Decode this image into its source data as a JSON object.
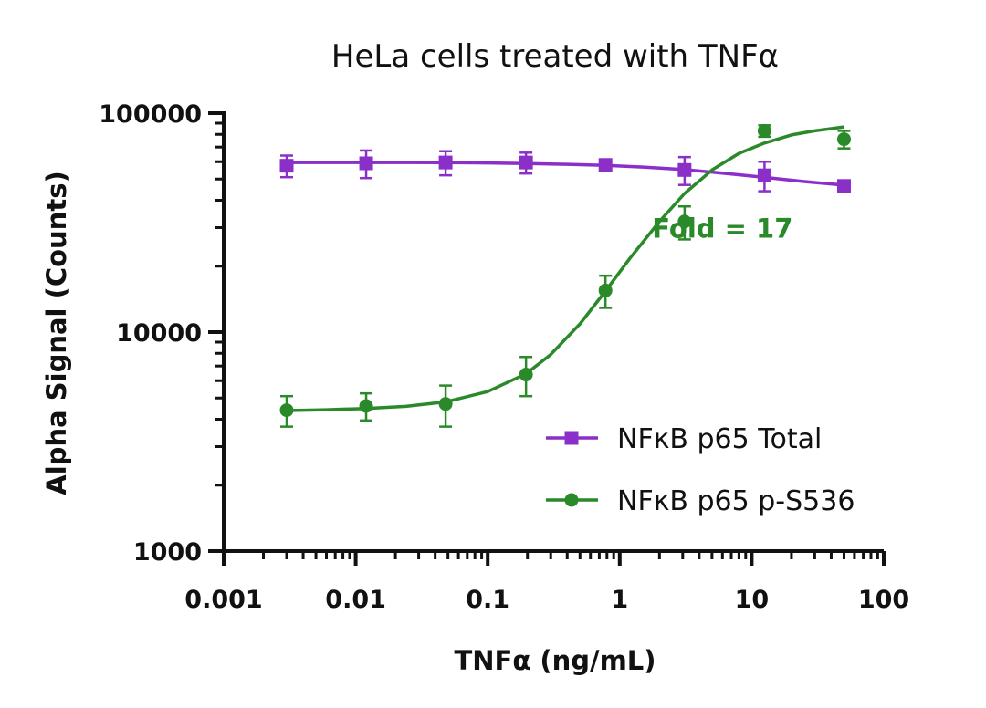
{
  "chart_data": {
    "type": "scatter",
    "title": "HeLa cells treated with TNFα",
    "xlabel": "TNFα (ng/mL)",
    "ylabel": "Alpha Signal (Counts)",
    "x_scale": "log",
    "y_scale": "log",
    "xlim": [
      0.001,
      100
    ],
    "ylim": [
      1000,
      100000
    ],
    "x_ticks": [
      {
        "value": 0.001,
        "label": "0.001"
      },
      {
        "value": 0.01,
        "label": "0.01"
      },
      {
        "value": 0.1,
        "label": "0.1"
      },
      {
        "value": 1,
        "label": "1"
      },
      {
        "value": 10,
        "label": "10"
      },
      {
        "value": 100,
        "label": "100"
      }
    ],
    "y_ticks": [
      {
        "value": 1000,
        "label": "1000"
      },
      {
        "value": 10000,
        "label": "10000"
      },
      {
        "value": 100000,
        "label": "100000"
      }
    ],
    "grid": false,
    "legend_position": "bottom-right",
    "series": [
      {
        "name": "NFκB p65 Total",
        "color": "#8B2FC9",
        "marker": "square",
        "x": [
          0.003,
          0.012,
          0.048,
          0.195,
          0.78,
          3.1,
          12.5,
          50
        ],
        "y": [
          57500,
          59000,
          59500,
          59500,
          58000,
          55000,
          52000,
          46500
        ],
        "error": [
          6500,
          8500,
          7500,
          6500,
          3000,
          8000,
          8000,
          2500
        ],
        "fit": "4PL",
        "fit_curve": {
          "x": [
            0.003,
            0.006,
            0.012,
            0.024,
            0.048,
            0.1,
            0.195,
            0.4,
            0.78,
            1.5,
            3.1,
            6,
            12.5,
            25,
            50
          ],
          "y": [
            59500,
            59500,
            59500,
            59500,
            59400,
            59200,
            58900,
            58400,
            57700,
            56700,
            55200,
            53200,
            50900,
            48700,
            46900
          ]
        }
      },
      {
        "name": "NFκB p65 p-S536",
        "color": "#2A8A2A",
        "marker": "circle",
        "x": [
          0.003,
          0.012,
          0.048,
          0.195,
          0.78,
          3.1,
          12.5,
          50
        ],
        "y": [
          4400,
          4600,
          4700,
          6400,
          15500,
          32000,
          83000,
          76000
        ],
        "error": [
          700,
          650,
          1000,
          1300,
          2600,
          5500,
          5000,
          7000
        ],
        "fit": "4PL",
        "fit_curve": {
          "x": [
            0.003,
            0.006,
            0.012,
            0.024,
            0.048,
            0.1,
            0.195,
            0.3,
            0.5,
            0.78,
            1.2,
            2,
            3.1,
            5,
            8,
            12.5,
            20,
            30,
            50
          ],
          "y": [
            4380,
            4420,
            4480,
            4580,
            4800,
            5350,
            6450,
            7900,
            10900,
            15400,
            21800,
            32000,
            43000,
            55000,
            65500,
            73000,
            79500,
            83000,
            86500
          ]
        }
      }
    ],
    "annotations": [
      {
        "text": "Fold = 17",
        "color": "#2A8A2A",
        "x": 6,
        "y": 27000
      }
    ]
  }
}
